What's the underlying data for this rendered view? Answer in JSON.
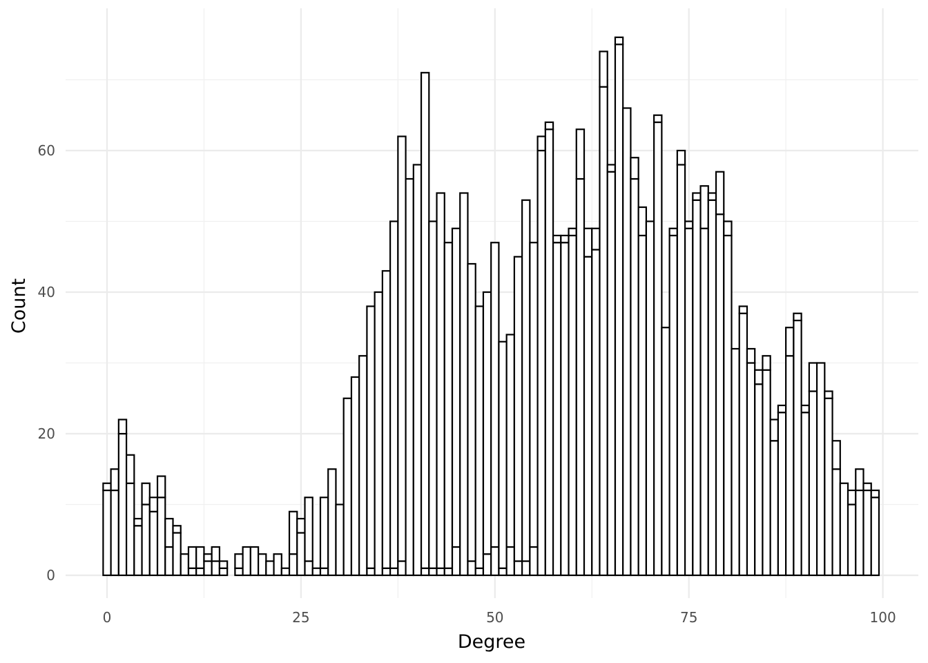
{
  "chart_data": {
    "type": "bar",
    "subtype": "histogram",
    "title": "",
    "xlabel": "Degree",
    "ylabel": "Count",
    "xlim": [
      -2,
      102
    ],
    "ylim": [
      -4,
      80
    ],
    "x_ticks": [
      0,
      25,
      50,
      75,
      100
    ],
    "y_ticks": [
      0,
      20,
      40,
      60
    ],
    "grid": true,
    "legend": "none",
    "bin_width": 1,
    "x": [
      0,
      1,
      2,
      3,
      4,
      5,
      6,
      7,
      8,
      9,
      10,
      11,
      12,
      13,
      14,
      15,
      16,
      17,
      18,
      19,
      20,
      21,
      22,
      23,
      24,
      25,
      26,
      27,
      28,
      29,
      30,
      31,
      32,
      33,
      34,
      35,
      36,
      37,
      38,
      39,
      40,
      41,
      42,
      43,
      44,
      45,
      46,
      47,
      48,
      49,
      50,
      51,
      52,
      53,
      54,
      55,
      56,
      57,
      58,
      59,
      60,
      61,
      62,
      63,
      64,
      65,
      66,
      67,
      68,
      69,
      70,
      71,
      72,
      73,
      74,
      75,
      76,
      77,
      78,
      79,
      80,
      81,
      82,
      83,
      84,
      85,
      86,
      87,
      88,
      89,
      90,
      91,
      92,
      93,
      94,
      95,
      96,
      97,
      98,
      99
    ],
    "series": [
      {
        "values": [
          12,
          12,
          20,
          13,
          7,
          10,
          9,
          11,
          4,
          6,
          0,
          1,
          1,
          2,
          2,
          1,
          0,
          1,
          0,
          0,
          0,
          0,
          0,
          0,
          3,
          6,
          2,
          1,
          1,
          0,
          0,
          0,
          0,
          0,
          1,
          0,
          1,
          1,
          2,
          0,
          0,
          1,
          1,
          1,
          1,
          4,
          0,
          2,
          1,
          3,
          4,
          1,
          4,
          2,
          2,
          4,
          60,
          63,
          47,
          47,
          48,
          56,
          45,
          46,
          69,
          57,
          75,
          66,
          56,
          48,
          50,
          64,
          35,
          48,
          58,
          49,
          53,
          49,
          53,
          51,
          48,
          32,
          37,
          30,
          27,
          29,
          19,
          23,
          31,
          36,
          23,
          26,
          30,
          25,
          15,
          13,
          10,
          12,
          12,
          11
        ]
      },
      {
        "values": [
          1,
          3,
          2,
          4,
          1,
          3,
          2,
          3,
          4,
          1,
          3,
          3,
          3,
          1,
          2,
          1,
          0,
          2,
          4,
          4,
          3,
          2,
          3,
          1,
          6,
          2,
          9,
          0,
          10,
          15,
          10,
          25,
          28,
          31,
          37,
          40,
          42,
          49,
          60,
          56,
          58,
          70,
          49,
          53,
          46,
          45,
          54,
          42,
          37,
          37,
          43,
          32,
          30,
          43,
          51,
          43,
          2,
          1,
          1,
          1,
          1,
          7,
          4,
          3,
          5,
          1,
          1,
          0,
          3,
          4,
          0,
          1,
          0,
          1,
          2,
          1,
          1,
          6,
          1,
          6,
          2,
          0,
          1,
          2,
          2,
          2,
          3,
          1,
          4,
          1,
          1,
          4,
          0,
          1,
          4,
          0,
          2,
          3,
          1,
          1
        ]
      }
    ]
  }
}
